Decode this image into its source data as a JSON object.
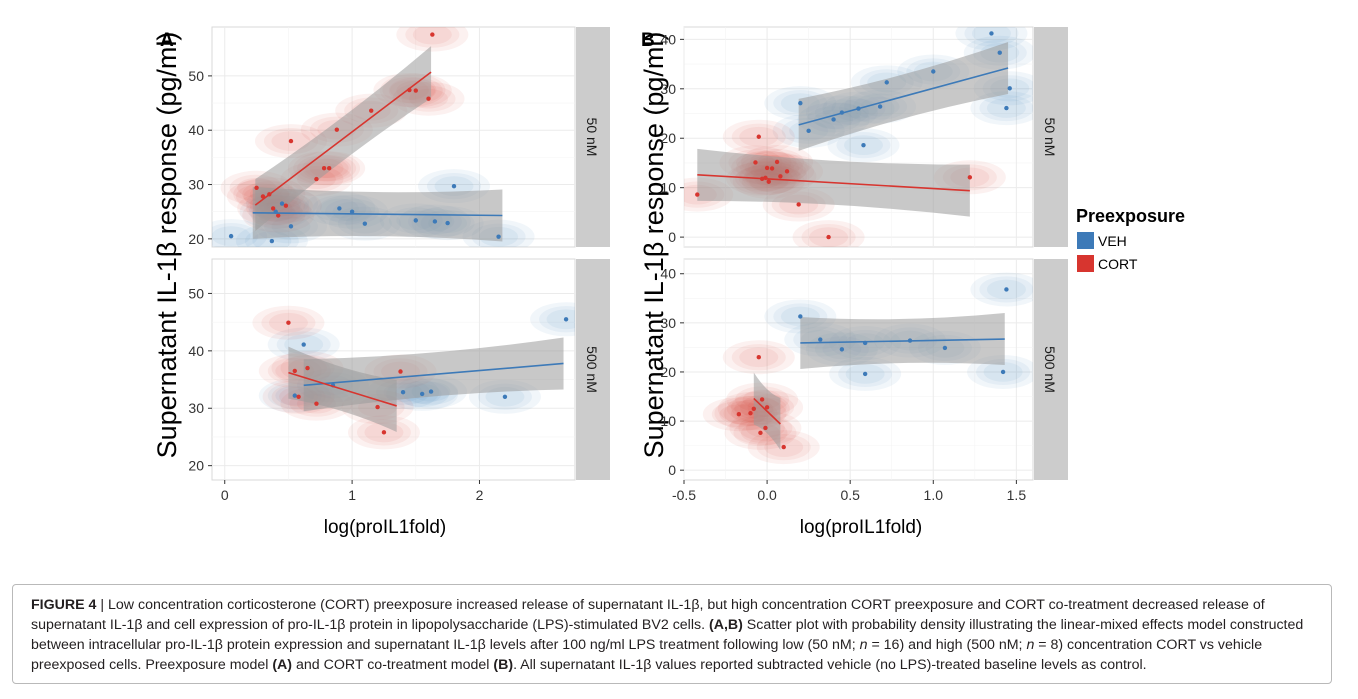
{
  "figure": {
    "ylabel": "Supernatant IL-1β response (pg/ml)",
    "xlabel": "log(proIL1fold)",
    "legend": {
      "title": "Preexposure",
      "items": [
        {
          "label": "VEH",
          "color": "#3d7ab8"
        },
        {
          "label": "CORT",
          "color": "#d7352f"
        }
      ],
      "placement": "right"
    },
    "panel_letters": [
      "A",
      "B"
    ],
    "colors": {
      "veh": "#3d7ab8",
      "cort": "#d7352f",
      "strip": "#cccccc",
      "ribbon": "#9a9a9a"
    }
  },
  "chart_data": [
    {
      "type": "scatter",
      "id": "A-50nM",
      "panel": "A",
      "strip": "50 nM",
      "xticks": [
        "0",
        "1",
        "2"
      ],
      "yticks": [
        "20",
        "30",
        "40",
        "50"
      ],
      "xlim": [
        -0.1,
        2.75
      ],
      "ylim": [
        18.5,
        59
      ],
      "grid": true,
      "series": [
        {
          "name": "VEH",
          "points": [
            [
              0.05,
              20.5
            ],
            [
              0.37,
              19.6
            ],
            [
              0.4,
              25.0
            ],
            [
              0.45,
              26.5
            ],
            [
              0.52,
              22.3
            ],
            [
              0.9,
              25.6
            ],
            [
              1.0,
              25.0
            ],
            [
              1.1,
              22.8
            ],
            [
              1.5,
              23.4
            ],
            [
              1.65,
              23.2
            ],
            [
              1.75,
              22.9
            ],
            [
              1.8,
              29.7
            ],
            [
              2.15,
              20.4
            ]
          ],
          "fit": [
            [
              0.22,
              24.8
            ],
            [
              2.18,
              24.3
            ]
          ]
        },
        {
          "name": "CORT",
          "points": [
            [
              0.25,
              29.4
            ],
            [
              0.3,
              27.8
            ],
            [
              0.35,
              28.2
            ],
            [
              0.38,
              25.6
            ],
            [
              0.42,
              24.3
            ],
            [
              0.48,
              26.1
            ],
            [
              0.52,
              38.0
            ],
            [
              0.72,
              31.0
            ],
            [
              0.78,
              33.0
            ],
            [
              0.82,
              33.0
            ],
            [
              0.88,
              40.1
            ],
            [
              1.15,
              43.6
            ],
            [
              1.45,
              47.4
            ],
            [
              1.5,
              47.3
            ],
            [
              1.6,
              45.8
            ],
            [
              1.63,
              57.6
            ]
          ],
          "fit": [
            [
              0.24,
              26.2
            ],
            [
              1.62,
              50.7
            ]
          ]
        }
      ]
    },
    {
      "type": "scatter",
      "id": "A-500nM",
      "panel": "A",
      "strip": "500 nM",
      "xticks": [
        "0",
        "1",
        "2"
      ],
      "yticks": [
        "20",
        "30",
        "40",
        "50"
      ],
      "xlim": [
        -0.1,
        2.75
      ],
      "ylim": [
        17.5,
        56
      ],
      "grid": true,
      "series": [
        {
          "name": "VEH",
          "points": [
            [
              0.55,
              32.2
            ],
            [
              0.62,
              41.1
            ],
            [
              0.85,
              34.0
            ],
            [
              1.4,
              32.8
            ],
            [
              1.55,
              32.5
            ],
            [
              1.62,
              32.9
            ],
            [
              2.2,
              32.0
            ],
            [
              2.68,
              45.5
            ]
          ],
          "fit": [
            [
              0.62,
              34.0
            ],
            [
              2.66,
              37.8
            ]
          ]
        },
        {
          "name": "CORT",
          "points": [
            [
              0.5,
              44.9
            ],
            [
              0.55,
              36.5
            ],
            [
              0.58,
              32.0
            ],
            [
              0.65,
              37.0
            ],
            [
              0.72,
              30.8
            ],
            [
              1.2,
              30.2
            ],
            [
              1.25,
              25.8
            ],
            [
              1.38,
              36.4
            ]
          ],
          "fit": [
            [
              0.5,
              36.2
            ],
            [
              1.35,
              30.4
            ]
          ]
        }
      ]
    },
    {
      "type": "scatter",
      "id": "B-50nM",
      "panel": "B",
      "strip": "50 nM",
      "xticks": [
        "-0.5",
        "0.0",
        "0.5",
        "1.0",
        "1.5"
      ],
      "yticks": [
        "0",
        "10",
        "20",
        "30",
        "40"
      ],
      "xlim": [
        -0.5,
        1.6
      ],
      "ylim": [
        -2,
        42.5
      ],
      "grid": true,
      "series": [
        {
          "name": "VEH",
          "points": [
            [
              0.2,
              27.1
            ],
            [
              0.25,
              21.5
            ],
            [
              0.4,
              23.8
            ],
            [
              0.45,
              25.2
            ],
            [
              0.55,
              26.0
            ],
            [
              0.58,
              18.6
            ],
            [
              0.68,
              26.4
            ],
            [
              0.72,
              31.3
            ],
            [
              1.0,
              33.5
            ],
            [
              1.35,
              41.2
            ],
            [
              1.4,
              37.3
            ],
            [
              1.44,
              26.1
            ],
            [
              1.46,
              30.1
            ]
          ],
          "fit": [
            [
              0.19,
              22.7
            ],
            [
              1.45,
              34.2
            ]
          ]
        },
        {
          "name": "CORT",
          "points": [
            [
              -0.42,
              8.6
            ],
            [
              -0.07,
              15.1
            ],
            [
              -0.05,
              20.3
            ],
            [
              -0.03,
              11.8
            ],
            [
              -0.01,
              12.0
            ],
            [
              0.0,
              14.0
            ],
            [
              0.01,
              11.2
            ],
            [
              0.03,
              13.9
            ],
            [
              0.06,
              15.2
            ],
            [
              0.08,
              12.3
            ],
            [
              0.12,
              13.3
            ],
            [
              0.19,
              6.6
            ],
            [
              0.37,
              0.0
            ],
            [
              1.22,
              12.1
            ]
          ],
          "fit": [
            [
              -0.42,
              12.6
            ],
            [
              1.22,
              9.4
            ]
          ]
        }
      ]
    },
    {
      "type": "scatter",
      "id": "B-500nM",
      "panel": "B",
      "strip": "500 nM",
      "xticks": [
        "-0.5",
        "0.0",
        "0.5",
        "1.0",
        "1.5"
      ],
      "yticks": [
        "0",
        "10",
        "20",
        "30",
        "40"
      ],
      "xlim": [
        -0.5,
        1.6
      ],
      "ylim": [
        -2,
        43
      ],
      "grid": true,
      "series": [
        {
          "name": "VEH",
          "points": [
            [
              0.2,
              31.3
            ],
            [
              0.32,
              26.6
            ],
            [
              0.45,
              24.6
            ],
            [
              0.59,
              25.9
            ],
            [
              0.59,
              19.6
            ],
            [
              0.86,
              26.4
            ],
            [
              1.07,
              24.9
            ],
            [
              1.42,
              20.0
            ],
            [
              1.44,
              36.8
            ]
          ],
          "fit": [
            [
              0.2,
              25.9
            ],
            [
              1.43,
              26.7
            ]
          ]
        },
        {
          "name": "CORT",
          "points": [
            [
              -0.17,
              11.4
            ],
            [
              -0.1,
              11.6
            ],
            [
              -0.08,
              12.5
            ],
            [
              -0.05,
              23.0
            ],
            [
              -0.04,
              7.6
            ],
            [
              -0.03,
              14.4
            ],
            [
              -0.01,
              8.6
            ],
            [
              0.0,
              12.8
            ],
            [
              0.1,
              4.7
            ]
          ],
          "fit": [
            [
              -0.08,
              14.6
            ],
            [
              0.08,
              9.4
            ]
          ]
        }
      ]
    }
  ],
  "caption": {
    "figure_label": "FIGURE 4",
    "separator": " | ",
    "t1": "Low concentration corticosterone (CORT) preexposure increased release of supernatant IL-1β, but high concentration CORT preexposure and CORT co-treatment decreased release of supernatant IL-1β and cell expression of pro-IL-1β protein in lipopolysaccharide (LPS)-stimulated BV2 cells. ",
    "b1": "(A,B)",
    "t2": " Scatter plot with probability density illustrating the linear-mixed effects model constructed between intracellular pro-IL-1β protein expression and supernatant IL-1β levels after 100 ng/ml LPS treatment following low (50 nM; ",
    "n1": "n",
    "t3": " = 16) and high (500 nM; ",
    "n2": "n",
    "t4": " = 8) concentration CORT vs vehicle preexposed cells. Preexposure model ",
    "b2": "(A)",
    "t5": " and CORT co-treatment model ",
    "b3": "(B)",
    "t6": ". All supernatant IL-1β values reported subtracted vehicle (no LPS)-treated baseline levels as control."
  }
}
